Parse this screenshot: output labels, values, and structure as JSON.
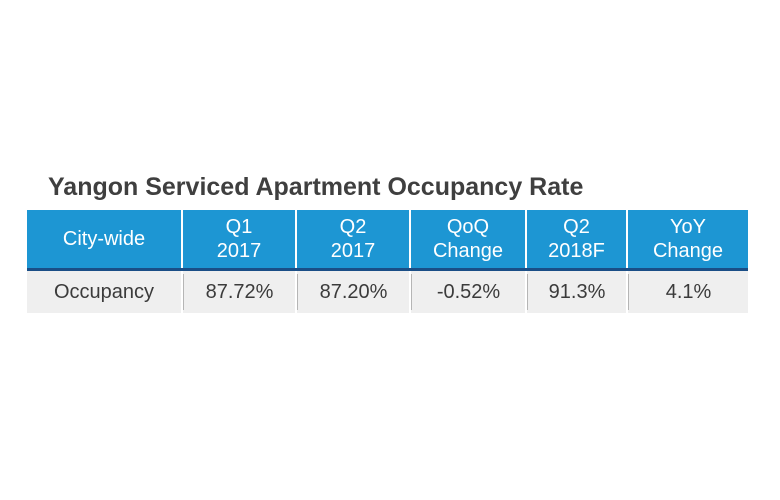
{
  "title": "Yangon Serviced Apartment Occupancy Rate",
  "table": {
    "headers": [
      [
        "City-wide"
      ],
      [
        "Q1",
        "2017"
      ],
      [
        "Q2",
        "2017"
      ],
      [
        "QoQ",
        "Change"
      ],
      [
        "Q2",
        "2018F"
      ],
      [
        "YoY",
        "Change"
      ]
    ],
    "rows": [
      [
        "Occupancy",
        "87.72%",
        "87.20%",
        "-0.52%",
        "91.3%",
        "4.1%"
      ]
    ]
  },
  "colors": {
    "header_bg": "#1d96d3",
    "header_rule": "#1a4e86",
    "row_bg": "#efefef",
    "title_text": "#3f3f3f"
  }
}
